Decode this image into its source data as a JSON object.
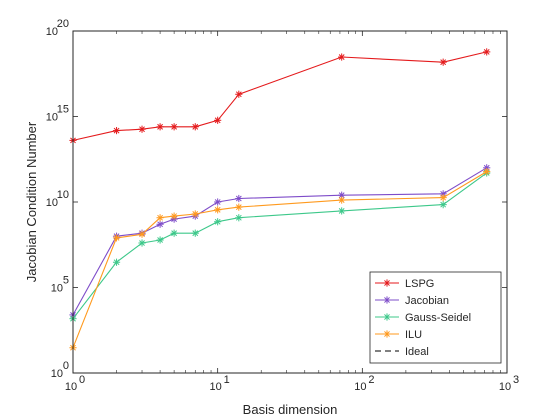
{
  "chart_data": {
    "type": "line",
    "xscale": "log",
    "yscale": "log",
    "xlabel": "Basis dimension",
    "ylabel": "Jacobian Condition Number",
    "xlim": [
      1,
      1000
    ],
    "ylim": [
      1,
      1e+20
    ],
    "x_ticks": [
      {
        "value": 1,
        "base": "10",
        "exp": "0"
      },
      {
        "value": 10,
        "base": "10",
        "exp": "1"
      },
      {
        "value": 100,
        "base": "10",
        "exp": "2"
      },
      {
        "value": 1000,
        "base": "10",
        "exp": "3"
      }
    ],
    "y_ticks": [
      {
        "value": 1,
        "base": "10",
        "exp": "0"
      },
      {
        "value": 100000,
        "base": "10",
        "exp": "5"
      },
      {
        "value": 10000000000.0,
        "base": "10",
        "exp": "10"
      },
      {
        "value": 1000000000000000.0,
        "base": "10",
        "exp": "15"
      },
      {
        "value": 1e+20,
        "base": "10",
        "exp": "20"
      }
    ],
    "grid": false,
    "legend_position": "bottom-right",
    "series": [
      {
        "name": "LSPG",
        "color": "#e41a1c",
        "dash": "none",
        "marker": true,
        "x": [
          1,
          2,
          3,
          4,
          5,
          7,
          10,
          14,
          72,
          362,
          724
        ],
        "y": [
          40000000000000.0,
          150000000000000.0,
          180000000000000.0,
          250000000000000.0,
          250000000000000.0,
          250000000000000.0,
          600000000000000.0,
          2e+16,
          3e+18,
          1.5e+18,
          6e+18
        ]
      },
      {
        "name": "Jacobian",
        "color": "#7e4cc9",
        "dash": "none",
        "marker": true,
        "x": [
          1,
          2,
          3,
          4,
          5,
          7,
          10,
          14,
          72,
          362,
          724
        ],
        "y": [
          2500.0,
          100000000.0,
          150000000.0,
          500000000.0,
          1000000000.0,
          1500000000.0,
          10000000000.0,
          16000000000.0,
          25000000000.0,
          30000000000.0,
          1000000000000.0
        ]
      },
      {
        "name": "Gauss-Seidel",
        "color": "#3dc88a",
        "dash": "none",
        "marker": true,
        "x": [
          1,
          2,
          3,
          4,
          5,
          7,
          10,
          14,
          72,
          362,
          724
        ],
        "y": [
          1500.0,
          3000000.0,
          40000000.0,
          60000000.0,
          150000000.0,
          150000000.0,
          700000000.0,
          1200000000.0,
          3000000000.0,
          7000000000.0,
          500000000000.0
        ]
      },
      {
        "name": "ILU",
        "color": "#ff9a1e",
        "dash": "none",
        "marker": true,
        "x": [
          1,
          2,
          3,
          4,
          5,
          7,
          10,
          14,
          72,
          362,
          724
        ],
        "y": [
          30,
          80000000.0,
          130000000.0,
          1200000000.0,
          1500000000.0,
          2000000000.0,
          3500000000.0,
          5000000000.0,
          13000000000.0,
          18000000000.0,
          600000000000.0
        ]
      },
      {
        "name": "Ideal",
        "color": "#000000",
        "dash": "dashed",
        "marker": false,
        "x": [
          1,
          1000
        ],
        "y": [
          1,
          1
        ]
      }
    ]
  }
}
